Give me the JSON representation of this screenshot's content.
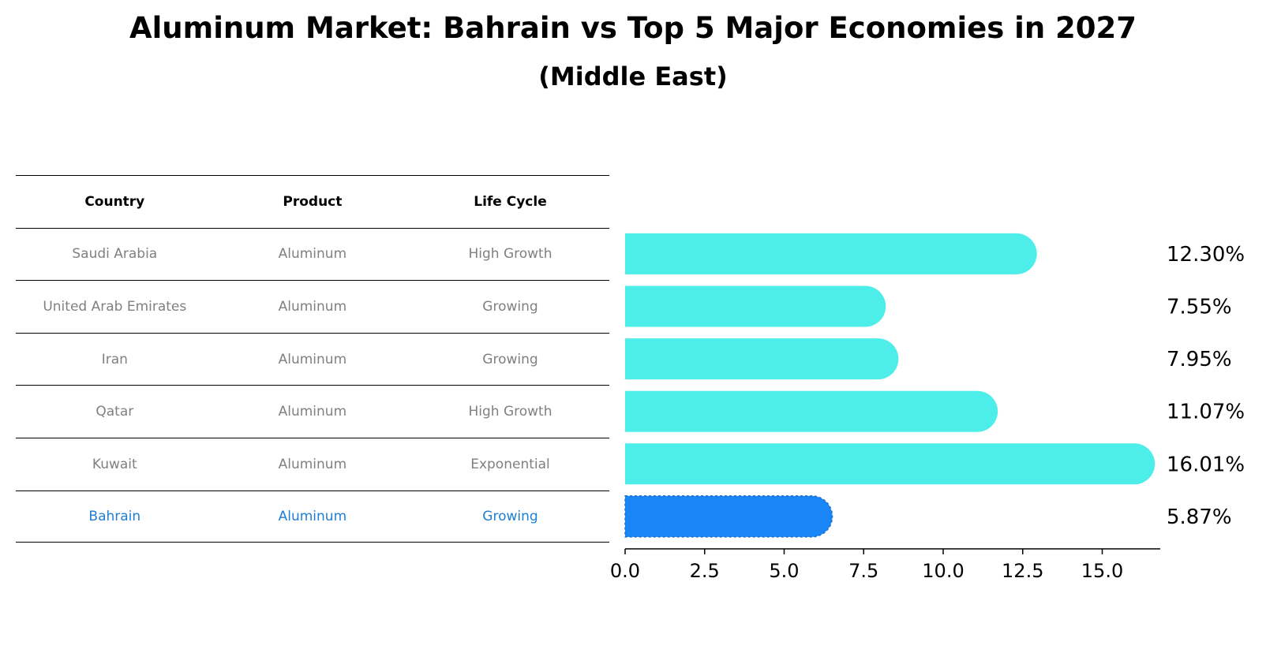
{
  "title": "Aluminum Market: Bahrain vs Top 5 Major Economies in 2027",
  "subtitle": "(Middle East)",
  "table": {
    "headers": [
      "Country",
      "Product",
      "Life Cycle"
    ],
    "rows": [
      [
        "Saudi Arabia",
        "Aluminum",
        "High Growth"
      ],
      [
        "United Arab Emirates",
        "Aluminum",
        "Growing"
      ],
      [
        "Iran",
        "Aluminum",
        "Growing"
      ],
      [
        "Qatar",
        "Aluminum",
        "High Growth"
      ],
      [
        "Kuwait",
        "Aluminum",
        "Exponential"
      ],
      [
        "Bahrain",
        "Aluminum",
        "Growing"
      ]
    ],
    "highlight_row": 5,
    "highlight_color": "#1e7fd6"
  },
  "chart_data": {
    "type": "bar",
    "orientation": "horizontal",
    "categories": [
      "Saudi Arabia",
      "United Arab Emirates",
      "Iran",
      "Qatar",
      "Kuwait",
      "Bahrain"
    ],
    "values": [
      12.3,
      7.55,
      7.95,
      11.07,
      16.01,
      5.87
    ],
    "value_labels": [
      "12.30%",
      "7.55%",
      "7.95%",
      "11.07%",
      "16.01%",
      "5.87%"
    ],
    "xlim": [
      0,
      16.9
    ],
    "xticks": [
      "0.0",
      "2.5",
      "5.0",
      "7.5",
      "10.0",
      "12.5",
      "15.0"
    ],
    "xtick_values": [
      0,
      2.5,
      5,
      7.5,
      10,
      12.5,
      15
    ],
    "bar_color": "#4deeea",
    "highlight_color": "#1a85f5",
    "highlight_index": 5,
    "grid": false
  }
}
